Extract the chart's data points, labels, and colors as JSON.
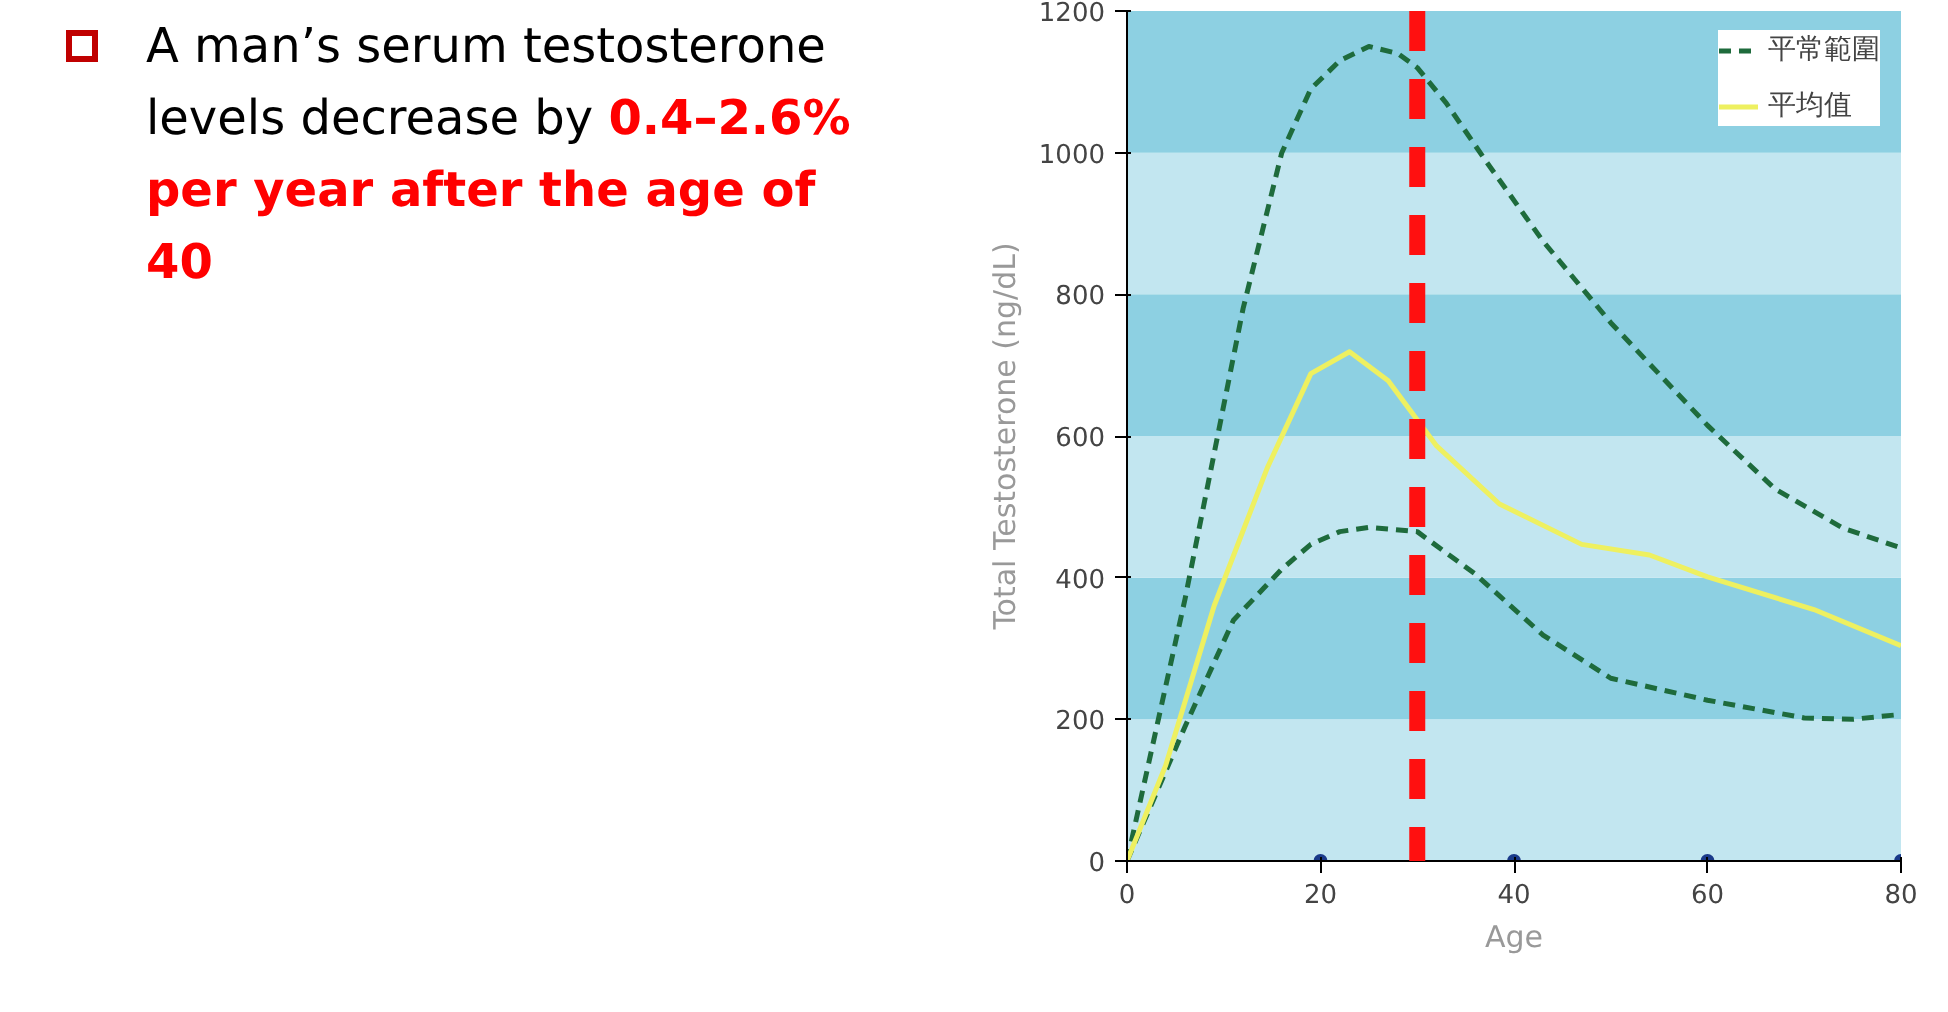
{
  "chart_data": {
    "type": "line",
    "xlabel": "Age",
    "ylabel": "Total Testosterone (ng/dL)",
    "annotations": [
      "A man’s serum testosterone levels decrease by",
      "0.4–2.6% per year after the age of 40"
    ],
    "xlim": [
      0,
      80
    ],
    "ylim": [
      0,
      1200
    ],
    "xticks": [
      0,
      20,
      40,
      60,
      80
    ],
    "yticks": [
      0,
      200,
      400,
      600,
      800,
      1000,
      1200
    ],
    "legend": "top right",
    "bands": [
      {
        "axis": "y",
        "from": 0,
        "to": 200,
        "color": "#c2e6f0"
      },
      {
        "axis": "y",
        "from": 200,
        "to": 400,
        "color": "#8dd0e2"
      },
      {
        "axis": "y",
        "from": 400,
        "to": 600,
        "color": "#c2e6f0"
      },
      {
        "axis": "y",
        "from": 600,
        "to": 800,
        "color": "#8dd0e2"
      },
      {
        "axis": "y",
        "from": 800,
        "to": 1000,
        "color": "#c2e6f0"
      },
      {
        "axis": "y",
        "from": 1000,
        "to": 1200,
        "color": "#8dd0e2"
      }
    ],
    "ref_lines": [
      {
        "axis": "x",
        "value": 30,
        "color": "#ff1010",
        "line_style": "dashed"
      }
    ],
    "series": [
      {
        "name": "平常範圍",
        "line_style": "dashed",
        "color": "#1e6b3c",
        "x": [
          0,
          6,
          12,
          16,
          19,
          22,
          25,
          28,
          30,
          33,
          37,
          43,
          50,
          60,
          67,
          74,
          80
        ],
        "values": [
          0,
          370,
          780,
          1000,
          1090,
          1130,
          1150,
          1140,
          1120,
          1070,
          990,
          875,
          760,
          615,
          525,
          470,
          442
        ]
      },
      {
        "line_style": "dashed",
        "color": "#1e6b3c",
        "x": [
          0,
          6,
          11,
          16,
          19,
          22,
          25,
          30,
          36,
          43,
          50,
          60,
          70,
          75,
          80
        ],
        "values": [
          0,
          190,
          340,
          412,
          447,
          465,
          471,
          465,
          405,
          319,
          258,
          227,
          202,
          200,
          207
        ]
      },
      {
        "name": "平均值",
        "line_style": "solid",
        "color": "#eef060",
        "x": [
          0,
          4,
          9,
          14.5,
          19,
          23,
          27,
          32,
          38.5,
          47,
          54,
          60,
          71,
          80
        ],
        "values": [
          0,
          135,
          360,
          555,
          688,
          719,
          678,
          586,
          504,
          447,
          432,
          401,
          355,
          304
        ]
      },
      {
        "type": "scatter",
        "marker": "circle",
        "color": "#1a3a8a",
        "x": [
          20,
          40,
          60,
          80
        ],
        "values": [
          0,
          0,
          0,
          0
        ]
      }
    ]
  }
}
